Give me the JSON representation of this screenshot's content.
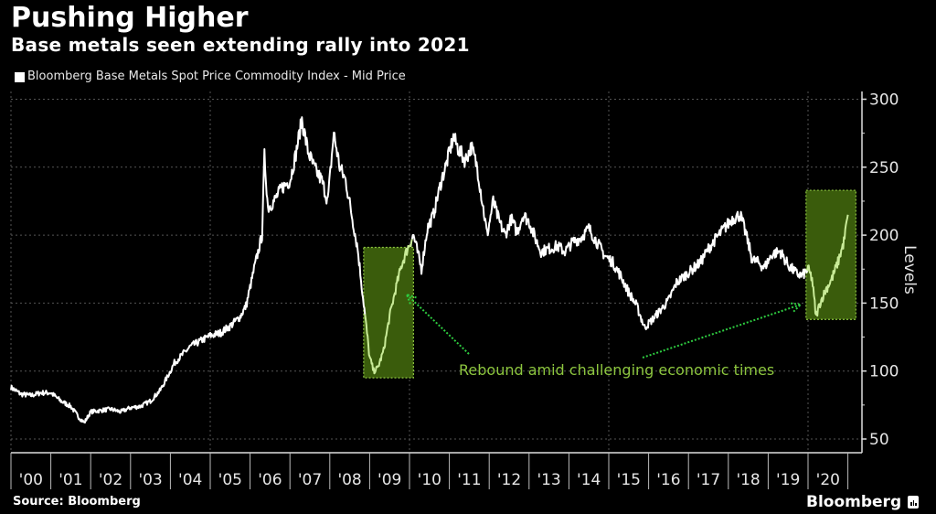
{
  "header": {
    "title": "Pushing Higher",
    "subtitle": "Base metals seen extending rally into 2021",
    "legend_label": "Bloomberg Base Metals Spot Price Commodity Index - Mid Price"
  },
  "footer": {
    "source": "Source: Bloomberg",
    "brand": "Bloomberg"
  },
  "colors": {
    "background": "#000000",
    "line": "#ffffff",
    "highlight_line": "#c9eb98",
    "highlight_box": "#3a5c0c",
    "annotation": "#8dc63f"
  },
  "chart_data": {
    "type": "line",
    "title": "Pushing Higher",
    "subtitle": "Base metals seen extending rally into 2021",
    "xlabel": "",
    "ylabel": "Levels",
    "ylim": [
      45,
      305
    ],
    "xlim": [
      2000,
      2021.4
    ],
    "y_ticks": [
      50,
      100,
      150,
      200,
      250,
      300
    ],
    "x_tick_labels": [
      "'00",
      "'01",
      "'02",
      "'03",
      "'04",
      "'05",
      "'06",
      "'07",
      "'08",
      "'09",
      "'10",
      "'11",
      "'12",
      "'13",
      "'14",
      "'15",
      "'16",
      "'17",
      "'18",
      "'19",
      "'20"
    ],
    "grid": true,
    "legend": "top-left",
    "series": [
      {
        "name": "Bloomberg Base Metals Spot Price Commodity Index - Mid Price",
        "x": [
          2000.0,
          2000.25,
          2000.5,
          2000.75,
          2001.0,
          2001.25,
          2001.5,
          2001.7,
          2001.84,
          2002.0,
          2002.25,
          2002.5,
          2002.75,
          2003.0,
          2003.25,
          2003.5,
          2003.75,
          2004.0,
          2004.1,
          2004.3,
          2004.5,
          2004.75,
          2005.0,
          2005.25,
          2005.5,
          2005.75,
          2005.9,
          2006.1,
          2006.3,
          2006.36,
          2006.45,
          2006.6,
          2006.8,
          2007.0,
          2007.15,
          2007.3,
          2007.45,
          2007.6,
          2007.8,
          2007.95,
          2008.1,
          2008.25,
          2008.4,
          2008.55,
          2008.7,
          2008.85,
          2009.0,
          2009.1,
          2009.2,
          2009.35,
          2009.5,
          2009.65,
          2009.8,
          2009.95,
          2010.1,
          2010.3,
          2010.45,
          2010.6,
          2010.8,
          2010.95,
          2011.1,
          2011.25,
          2011.4,
          2011.55,
          2011.7,
          2011.85,
          2011.95,
          2012.1,
          2012.25,
          2012.4,
          2012.55,
          2012.7,
          2012.85,
          2013.0,
          2013.15,
          2013.3,
          2013.5,
          2013.7,
          2013.9,
          2014.1,
          2014.3,
          2014.5,
          2014.7,
          2014.9,
          2015.1,
          2015.3,
          2015.5,
          2015.7,
          2015.9,
          2016.1,
          2016.3,
          2016.5,
          2016.7,
          2016.9,
          2017.1,
          2017.3,
          2017.5,
          2017.7,
          2017.9,
          2018.1,
          2018.3,
          2018.45,
          2018.6,
          2018.75,
          2018.9,
          2019.1,
          2019.3,
          2019.5,
          2019.7,
          2019.85,
          2020.0,
          2020.1,
          2020.2,
          2020.3,
          2020.45,
          2020.6,
          2020.75,
          2020.9,
          2021.0
        ],
        "values": [
          88,
          83,
          82,
          84,
          84,
          78,
          74,
          66,
          62,
          70,
          71,
          72,
          70,
          73,
          74,
          78,
          86,
          100,
          106,
          112,
          118,
          122,
          126,
          128,
          133,
          140,
          148,
          175,
          200,
          258,
          220,
          225,
          235,
          240,
          260,
          285,
          262,
          250,
          240,
          225,
          275,
          250,
          240,
          215,
          190,
          150,
          110,
          100,
          102,
          115,
          140,
          160,
          178,
          190,
          200,
          175,
          205,
          215,
          240,
          255,
          272,
          262,
          255,
          265,
          250,
          220,
          200,
          225,
          210,
          200,
          212,
          202,
          215,
          210,
          198,
          188,
          190,
          192,
          188,
          195,
          198,
          205,
          195,
          185,
          180,
          170,
          158,
          148,
          132,
          138,
          145,
          152,
          165,
          170,
          175,
          180,
          190,
          198,
          205,
          212,
          215,
          200,
          182,
          180,
          176,
          186,
          188,
          178,
          172,
          170,
          175,
          168,
          140,
          150,
          160,
          168,
          180,
          195,
          215
        ]
      }
    ],
    "highlight_boxes": [
      {
        "x_range": [
          2008.85,
          2010.1
        ],
        "y_range": [
          95,
          191
        ]
      },
      {
        "x_range": [
          2019.95,
          2021.2
        ],
        "y_range": [
          138,
          233
        ]
      }
    ],
    "annotations": [
      {
        "text": "Rebound amid challenging economic times",
        "x": 2011.25,
        "y": 100
      }
    ]
  }
}
